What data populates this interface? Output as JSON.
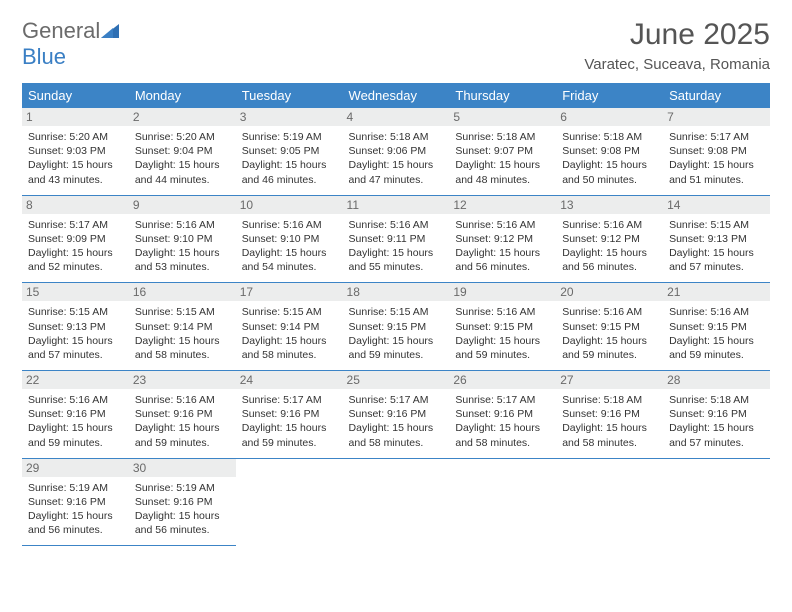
{
  "brand": {
    "general": "General",
    "blue": "Blue"
  },
  "title": "June 2025",
  "location": "Varatec, Suceava, Romania",
  "colors": {
    "header_bg": "#3c84c6",
    "header_text": "#ffffff",
    "daynum_bg": "#eceded",
    "daynum_text": "#6a6a6a",
    "cell_border": "#3c84c6",
    "body_text": "#333333",
    "logo_gray": "#6b6b6b",
    "logo_blue": "#3a7fc4"
  },
  "weekdays": [
    "Sunday",
    "Monday",
    "Tuesday",
    "Wednesday",
    "Thursday",
    "Friday",
    "Saturday"
  ],
  "days": [
    {
      "n": 1,
      "sr": "5:20 AM",
      "ss": "9:03 PM",
      "dl": "15 hours and 43 minutes."
    },
    {
      "n": 2,
      "sr": "5:20 AM",
      "ss": "9:04 PM",
      "dl": "15 hours and 44 minutes."
    },
    {
      "n": 3,
      "sr": "5:19 AM",
      "ss": "9:05 PM",
      "dl": "15 hours and 46 minutes."
    },
    {
      "n": 4,
      "sr": "5:18 AM",
      "ss": "9:06 PM",
      "dl": "15 hours and 47 minutes."
    },
    {
      "n": 5,
      "sr": "5:18 AM",
      "ss": "9:07 PM",
      "dl": "15 hours and 48 minutes."
    },
    {
      "n": 6,
      "sr": "5:18 AM",
      "ss": "9:08 PM",
      "dl": "15 hours and 50 minutes."
    },
    {
      "n": 7,
      "sr": "5:17 AM",
      "ss": "9:08 PM",
      "dl": "15 hours and 51 minutes."
    },
    {
      "n": 8,
      "sr": "5:17 AM",
      "ss": "9:09 PM",
      "dl": "15 hours and 52 minutes."
    },
    {
      "n": 9,
      "sr": "5:16 AM",
      "ss": "9:10 PM",
      "dl": "15 hours and 53 minutes."
    },
    {
      "n": 10,
      "sr": "5:16 AM",
      "ss": "9:10 PM",
      "dl": "15 hours and 54 minutes."
    },
    {
      "n": 11,
      "sr": "5:16 AM",
      "ss": "9:11 PM",
      "dl": "15 hours and 55 minutes."
    },
    {
      "n": 12,
      "sr": "5:16 AM",
      "ss": "9:12 PM",
      "dl": "15 hours and 56 minutes."
    },
    {
      "n": 13,
      "sr": "5:16 AM",
      "ss": "9:12 PM",
      "dl": "15 hours and 56 minutes."
    },
    {
      "n": 14,
      "sr": "5:15 AM",
      "ss": "9:13 PM",
      "dl": "15 hours and 57 minutes."
    },
    {
      "n": 15,
      "sr": "5:15 AM",
      "ss": "9:13 PM",
      "dl": "15 hours and 57 minutes."
    },
    {
      "n": 16,
      "sr": "5:15 AM",
      "ss": "9:14 PM",
      "dl": "15 hours and 58 minutes."
    },
    {
      "n": 17,
      "sr": "5:15 AM",
      "ss": "9:14 PM",
      "dl": "15 hours and 58 minutes."
    },
    {
      "n": 18,
      "sr": "5:15 AM",
      "ss": "9:15 PM",
      "dl": "15 hours and 59 minutes."
    },
    {
      "n": 19,
      "sr": "5:16 AM",
      "ss": "9:15 PM",
      "dl": "15 hours and 59 minutes."
    },
    {
      "n": 20,
      "sr": "5:16 AM",
      "ss": "9:15 PM",
      "dl": "15 hours and 59 minutes."
    },
    {
      "n": 21,
      "sr": "5:16 AM",
      "ss": "9:15 PM",
      "dl": "15 hours and 59 minutes."
    },
    {
      "n": 22,
      "sr": "5:16 AM",
      "ss": "9:16 PM",
      "dl": "15 hours and 59 minutes."
    },
    {
      "n": 23,
      "sr": "5:16 AM",
      "ss": "9:16 PM",
      "dl": "15 hours and 59 minutes."
    },
    {
      "n": 24,
      "sr": "5:17 AM",
      "ss": "9:16 PM",
      "dl": "15 hours and 59 minutes."
    },
    {
      "n": 25,
      "sr": "5:17 AM",
      "ss": "9:16 PM",
      "dl": "15 hours and 58 minutes."
    },
    {
      "n": 26,
      "sr": "5:17 AM",
      "ss": "9:16 PM",
      "dl": "15 hours and 58 minutes."
    },
    {
      "n": 27,
      "sr": "5:18 AM",
      "ss": "9:16 PM",
      "dl": "15 hours and 58 minutes."
    },
    {
      "n": 28,
      "sr": "5:18 AM",
      "ss": "9:16 PM",
      "dl": "15 hours and 57 minutes."
    },
    {
      "n": 29,
      "sr": "5:19 AM",
      "ss": "9:16 PM",
      "dl": "15 hours and 56 minutes."
    },
    {
      "n": 30,
      "sr": "5:19 AM",
      "ss": "9:16 PM",
      "dl": "15 hours and 56 minutes."
    }
  ],
  "labels": {
    "sunrise": "Sunrise:",
    "sunset": "Sunset:",
    "daylight": "Daylight:"
  },
  "layout": {
    "start_weekday": 0,
    "total_cells": 35
  }
}
